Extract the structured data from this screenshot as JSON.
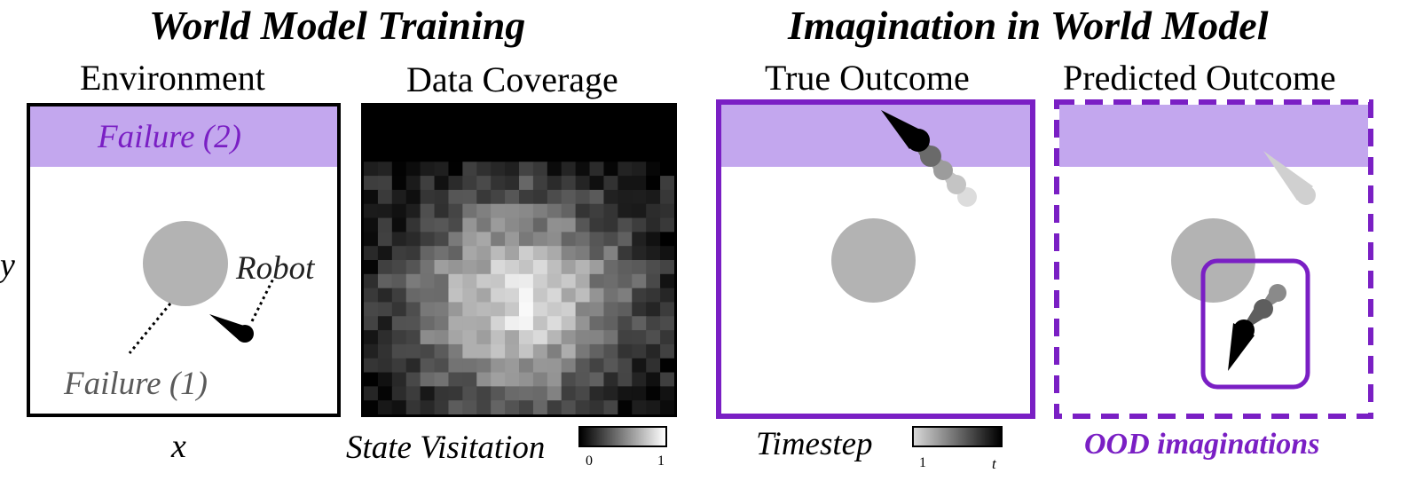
{
  "sections": {
    "left_title": "World Model Training",
    "right_title": "Imagination in World Model"
  },
  "panels": {
    "environment": {
      "title": "Environment",
      "failure2_label": "Failure (2)",
      "robot_label": "Robot",
      "failure1_label": "Failure (1)"
    },
    "data_coverage": {
      "title": "Data Coverage"
    },
    "true_outcome": {
      "title": "True Outcome"
    },
    "predicted_outcome": {
      "title": "Predicted Outcome"
    }
  },
  "axes": {
    "x_label": "x",
    "y_label": "y"
  },
  "colorbars": {
    "state_visitation": {
      "label": "State Visitation",
      "min": "0",
      "max": "1"
    },
    "timestep": {
      "label": "Timestep",
      "min": "1",
      "max": "t"
    }
  },
  "annotations": {
    "ood_label": "OOD imaginations"
  },
  "colors": {
    "failure_region": "#c3a7ee",
    "accent_purple": "#7a1fc4",
    "obstacle": "#b3b3b3",
    "failure_text": "#7a1fc4",
    "failure1_text": "#5a5a5a"
  }
}
